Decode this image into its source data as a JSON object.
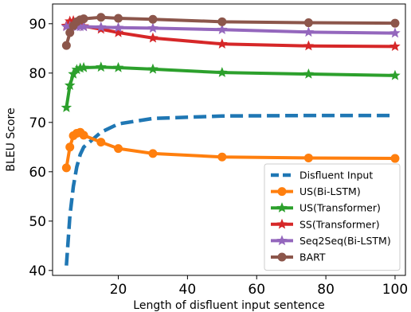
{
  "chart_data": {
    "type": "line",
    "xlabel": "Length of disfluent input sentence",
    "ylabel": "BLEU Score",
    "xlim": [
      1,
      103
    ],
    "ylim": [
      39,
      94
    ],
    "xticks": [
      20,
      40,
      60,
      80,
      100
    ],
    "yticks": [
      40,
      50,
      60,
      70,
      80,
      90
    ],
    "xtick_labels": [
      "20",
      "40",
      "60",
      "80",
      "100"
    ],
    "ytick_labels": [
      "40",
      "50",
      "60",
      "70",
      "80",
      "90"
    ],
    "grid": false,
    "legend_position": "lower-right",
    "series": [
      {
        "name": "Disfluent Input",
        "color": "#1f77b4",
        "style": "dashed",
        "marker": "none",
        "x": [
          5,
          6,
          7,
          8,
          9,
          10,
          15,
          20,
          30,
          50,
          75,
          100
        ],
        "y": [
          41.0,
          51.0,
          57.0,
          61.0,
          63.5,
          65.0,
          68.0,
          69.7,
          70.8,
          71.3,
          71.4,
          71.4
        ]
      },
      {
        "name": "US(Bi-LSTM)",
        "color": "#ff7f0e",
        "style": "solid",
        "marker": "circle",
        "x": [
          5,
          6,
          7,
          8,
          9,
          10,
          15,
          20,
          30,
          50,
          75,
          100
        ],
        "y": [
          60.8,
          65.0,
          67.3,
          67.8,
          68.0,
          67.4,
          66.0,
          64.7,
          63.7,
          63.0,
          62.8,
          62.7
        ]
      },
      {
        "name": "US(Transformer)",
        "color": "#2ca02c",
        "style": "solid",
        "marker": "star",
        "x": [
          5,
          6,
          7,
          8,
          9,
          10,
          15,
          20,
          30,
          50,
          75,
          100
        ],
        "y": [
          73.0,
          77.5,
          79.8,
          80.7,
          81.0,
          81.1,
          81.2,
          81.1,
          80.8,
          80.1,
          79.8,
          79.5
        ]
      },
      {
        "name": "SS(Transformer)",
        "color": "#d62728",
        "style": "solid",
        "marker": "star",
        "x": [
          5,
          6,
          7,
          8,
          9,
          10,
          15,
          20,
          30,
          50,
          75,
          100
        ],
        "y": [
          89.6,
          90.5,
          90.6,
          90.3,
          89.9,
          89.5,
          88.9,
          88.2,
          87.1,
          85.9,
          85.5,
          85.4
        ]
      },
      {
        "name": "Seq2Seq(Bi-LSTM)",
        "color": "#9467bd",
        "style": "solid",
        "marker": "star",
        "x": [
          5,
          6,
          7,
          8,
          9,
          10,
          15,
          20,
          30,
          50,
          75,
          100
        ],
        "y": [
          89.4,
          89.5,
          89.5,
          89.4,
          89.4,
          89.4,
          89.3,
          89.2,
          89.1,
          88.8,
          88.3,
          88.1
        ]
      },
      {
        "name": "BART",
        "color": "#8c564b",
        "style": "solid",
        "marker": "circle",
        "x": [
          5,
          6,
          7,
          8,
          9,
          10,
          15,
          20,
          30,
          50,
          75,
          100
        ],
        "y": [
          85.6,
          88.2,
          89.6,
          90.4,
          90.8,
          91.0,
          91.3,
          91.1,
          90.9,
          90.4,
          90.2,
          90.1
        ]
      }
    ]
  }
}
